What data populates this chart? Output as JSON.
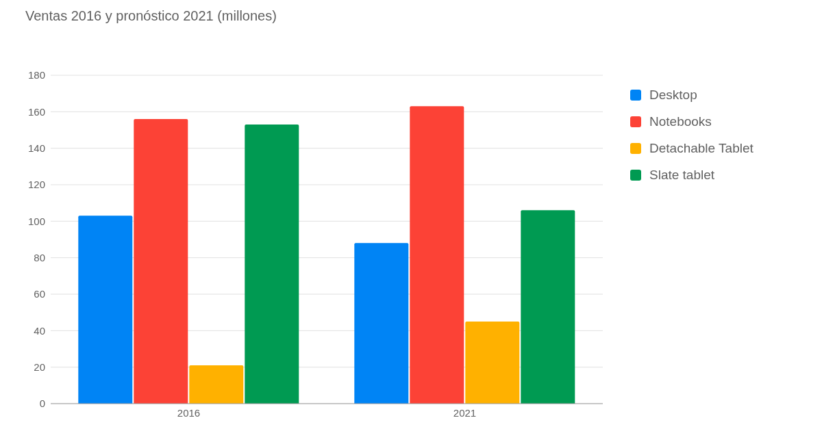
{
  "chart_data": {
    "type": "bar",
    "title": "Ventas 2016 y pronóstico 2021 (millones)",
    "categories": [
      "2016",
      "2021"
    ],
    "series": [
      {
        "name": "Desktop",
        "color": "#0084f5",
        "values": [
          103,
          88
        ]
      },
      {
        "name": "Notebooks",
        "color": "#fc4236",
        "values": [
          156,
          163
        ]
      },
      {
        "name": "Detachable Tablet",
        "color": "#ffb100",
        "values": [
          21,
          45
        ]
      },
      {
        "name": "Slate tablet",
        "color": "#009a52",
        "values": [
          153,
          106
        ]
      }
    ],
    "ylim": [
      0,
      180
    ],
    "yticks": [
      0,
      20,
      40,
      60,
      80,
      100,
      120,
      140,
      160,
      180
    ],
    "grid": "y",
    "legend": "right"
  }
}
